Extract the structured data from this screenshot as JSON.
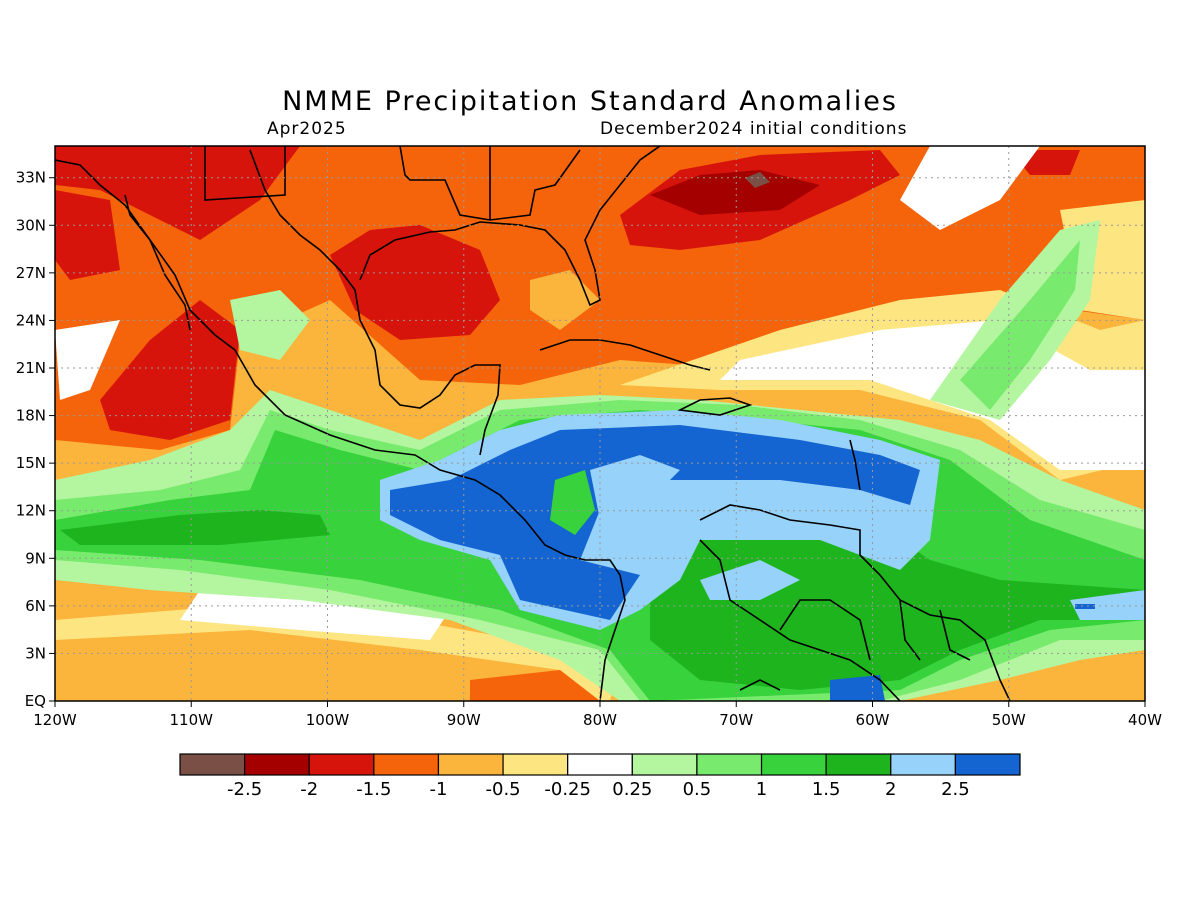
{
  "title": "NMME Precipitation Standard Anomalies",
  "subtitle_left": "Apr2025",
  "subtitle_right": "December2024 initial conditions",
  "map": {
    "lon_range": [
      -120,
      -40
    ],
    "lat_range": [
      0,
      35
    ],
    "lon_ticks": [
      {
        "value": -120,
        "label": "120W"
      },
      {
        "value": -110,
        "label": "110W"
      },
      {
        "value": -100,
        "label": "100W"
      },
      {
        "value": -90,
        "label": "90W"
      },
      {
        "value": -80,
        "label": "80W"
      },
      {
        "value": -70,
        "label": "70W"
      },
      {
        "value": -60,
        "label": "60W"
      },
      {
        "value": -50,
        "label": "50W"
      },
      {
        "value": -40,
        "label": "40W"
      }
    ],
    "lat_ticks": [
      {
        "value": 0,
        "label": "EQ"
      },
      {
        "value": 3,
        "label": "3N"
      },
      {
        "value": 6,
        "label": "6N"
      },
      {
        "value": 9,
        "label": "9N"
      },
      {
        "value": 12,
        "label": "12N"
      },
      {
        "value": 15,
        "label": "15N"
      },
      {
        "value": 18,
        "label": "18N"
      },
      {
        "value": 21,
        "label": "21N"
      },
      {
        "value": 24,
        "label": "24N"
      },
      {
        "value": 27,
        "label": "27N"
      },
      {
        "value": 30,
        "label": "30N"
      },
      {
        "value": 33,
        "label": "33N"
      }
    ],
    "grid": true
  },
  "colorbar": {
    "colors": [
      "#7a5046",
      "#a50000",
      "#d7140c",
      "#f5640a",
      "#fbb43c",
      "#fde682",
      "#ffffff",
      "#b4f5a0",
      "#78eb6e",
      "#37d23c",
      "#1eb41e",
      "#96d2fa",
      "#1464d2"
    ],
    "labels": [
      "-2.5",
      "-2",
      "-1.5",
      "-1",
      "-0.5",
      "-0.25",
      "0.25",
      "0.5",
      "1",
      "1.5",
      "2",
      "2.5"
    ]
  },
  "chart_data": {
    "type": "heatmap",
    "title": "NMME Precipitation Standard Anomalies",
    "subtitle": "Apr2025 / December2024 initial conditions",
    "x_range": [
      -120,
      -40
    ],
    "y_range": [
      0,
      35
    ],
    "contour_levels": [
      -2.5,
      -2,
      -1.5,
      -1,
      -0.5,
      -0.25,
      0.25,
      0.5,
      1,
      1.5,
      2,
      2.5
    ],
    "regions": [
      {
        "area": "Western Gulf of Mexico / Texas coast",
        "anomaly": "-2 to -1.5"
      },
      {
        "area": "Western Atlantic near 30N 70W",
        "anomaly": "below -2.5"
      },
      {
        "area": "Baja California / Mexican Pacific 18-24N",
        "anomaly": "-2 to -1.5"
      },
      {
        "area": "Caribbean Sea 12-18N",
        "anomaly": "above 2.5"
      },
      {
        "area": "Central America Pacific coast 7-13N",
        "anomaly": "above 2.5"
      },
      {
        "area": "Northern South America",
        "anomaly": "1 to 2"
      },
      {
        "area": "Eastern tropical Pacific near equator",
        "anomaly": "-1 to -0.5"
      }
    ]
  }
}
